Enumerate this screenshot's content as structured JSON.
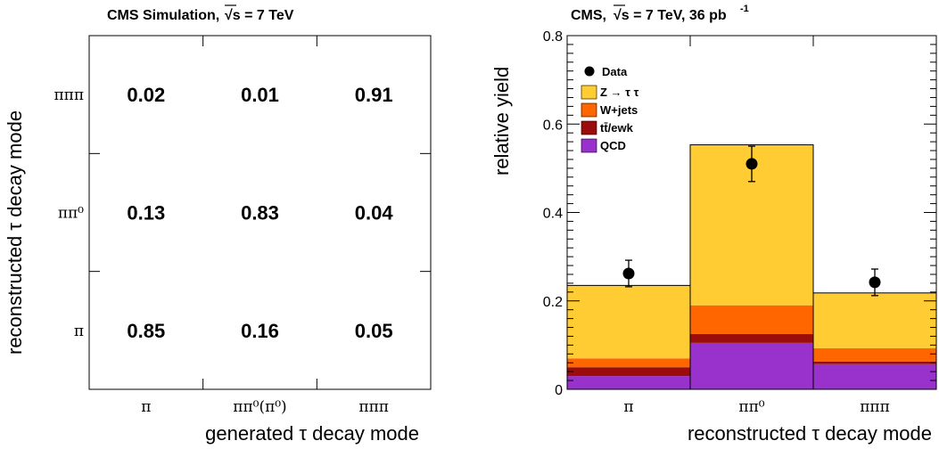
{
  "chart_data": [
    {
      "type": "heatmap",
      "title": "CMS Simulation,",
      "title_sqrt": "√s = 7 TeV",
      "xlabel": "generated τ decay mode",
      "ylabel": "reconstructed τ decay mode",
      "x_categories": [
        "π",
        "ππ⁰(π⁰)",
        "πππ"
      ],
      "y_categories": [
        "π",
        "ππ⁰",
        "πππ"
      ],
      "values": [
        [
          0.85,
          0.16,
          0.05
        ],
        [
          0.13,
          0.83,
          0.04
        ],
        [
          0.02,
          0.01,
          0.91
        ]
      ],
      "cell_labels": [
        [
          "0.85",
          "0.16",
          "0.05"
        ],
        [
          "0.13",
          "0.83",
          "0.04"
        ],
        [
          "0.02",
          "0.01",
          "0.91"
        ]
      ]
    },
    {
      "type": "bar",
      "stacked": true,
      "title": "CMS,",
      "title_sqrt": "√s = 7 TeV, 36 pb",
      "title_sup": "-1",
      "xlabel": "reconstructed τ decay mode",
      "ylabel": "relative yield",
      "categories": [
        "π",
        "ππ⁰",
        "πππ"
      ],
      "ylim": [
        0,
        0.8
      ],
      "y_ticks": [
        "0",
        "0.2",
        "0.4",
        "0.6",
        "0.8"
      ],
      "legend_position": "top-left",
      "series": [
        {
          "name": "QCD",
          "color": "#9932cc",
          "values": [
            0.03,
            0.105,
            0.057
          ]
        },
        {
          "name": "tt̄/ewk",
          "color": "#9b0d0d",
          "values": [
            0.02,
            0.02,
            0.006
          ]
        },
        {
          "name": "W+jets",
          "color": "#ff6600",
          "values": [
            0.02,
            0.065,
            0.03
          ]
        },
        {
          "name": "Z → τ τ",
          "color": "#ffcc33",
          "values": [
            0.165,
            0.363,
            0.125
          ]
        }
      ],
      "data_points": {
        "name": "Data",
        "values": [
          0.262,
          0.51,
          0.242
        ],
        "errors": [
          0.03,
          0.04,
          0.03
        ]
      }
    }
  ]
}
